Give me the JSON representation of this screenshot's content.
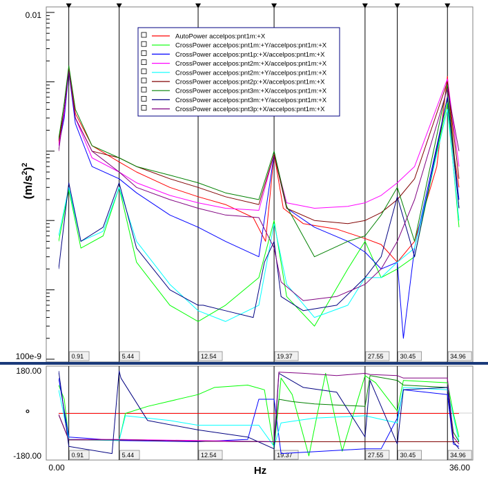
{
  "chart_data": [
    {
      "type": "line",
      "panel": "magnitude",
      "ylabel_base": "(m/s",
      "ylabel_sup": "2",
      "ylabel_close": ")",
      "ylabel_sup2": "2",
      "yscale": "log",
      "ylim": [
        1e-07,
        0.01
      ],
      "y_tick_labels": [
        "0.01",
        "100e-9"
      ],
      "xlim": [
        0,
        36
      ],
      "cursors": [
        0.91,
        5.44,
        12.54,
        19.37,
        27.55,
        30.45,
        34.96
      ],
      "cursor_labels": [
        "0.91",
        "5.44",
        "12.54",
        "19.37",
        "27.55",
        "30.45",
        "34.96"
      ],
      "series": [
        {
          "name": "AutoPower accelpos:pnt1m:+X",
          "color": "#ff0000",
          "x": [
            0,
            0.5,
            0.91,
            1.5,
            3,
            5.44,
            7,
            10,
            12.54,
            15,
            17.5,
            18.6,
            19.37,
            20.2,
            22,
            25,
            27.55,
            29,
            30.45,
            32,
            34,
            34.96,
            35.6,
            36
          ],
          "y": [
            0.00013,
            0.0004,
            0.0016,
            0.00035,
            0.00012,
            7e-05,
            5e-05,
            3e-05,
            2.2e-05,
            1.7e-05,
            1.1e-05,
            5e-06,
            9e-05,
            1.5e-05,
            9e-06,
            7.5e-06,
            5.5e-06,
            4.5e-06,
            2.5e-06,
            5e-06,
            6e-05,
            0.0012,
            8e-05,
            3e-05
          ]
        },
        {
          "name": "CrossPower accelpos:pnt1m:+Y/accelpos:pnt1m:+X",
          "color": "#00ff00",
          "x": [
            0,
            0.91,
            2,
            4,
            5.44,
            7,
            10,
            12.54,
            15,
            18,
            19.37,
            20.5,
            23,
            26,
            27.55,
            29,
            30.45,
            32,
            34.96,
            36
          ],
          "y": [
            5e-06,
            2.8e-05,
            4e-06,
            6e-06,
            3e-05,
            2.5e-06,
            6e-07,
            3.5e-07,
            6e-07,
            1.5e-06,
            1e-05,
            8e-07,
            3e-07,
            2e-06,
            5e-06,
            1.5e-06,
            2e-06,
            3e-06,
            0.0005,
            8e-06
          ]
        },
        {
          "name": "CrossPower accelpos:pnt1p:+X/accelpos:pnt1m:+X",
          "color": "#0000ff",
          "x": [
            0,
            0.5,
            0.91,
            1.5,
            3,
            5.44,
            7,
            10,
            12.54,
            15,
            18,
            19.37,
            20.5,
            23,
            26,
            27.55,
            29,
            30.45,
            31,
            32,
            34.96,
            36
          ],
          "y": [
            0.00012,
            0.0003,
            0.0014,
            0.00025,
            6e-05,
            4e-05,
            2.5e-05,
            1.2e-05,
            8e-06,
            5e-06,
            3e-06,
            9e-05,
            1.5e-05,
            8e-06,
            5e-06,
            3.5e-06,
            2e-06,
            2.5e-06,
            2e-07,
            4e-06,
            0.0006,
            2e-05
          ]
        },
        {
          "name": "CrossPower accelpos:pnt2m:+X/accelpos:pnt1m:+X",
          "color": "#ff00ff",
          "x": [
            0,
            0.5,
            0.91,
            1.5,
            3,
            5.44,
            7,
            10,
            12.54,
            15,
            18,
            19.37,
            20.5,
            23,
            26,
            27.55,
            29,
            30.45,
            32,
            34.96,
            36
          ],
          "y": [
            0.00012,
            0.00035,
            0.0015,
            0.0003,
            8e-05,
            5e-05,
            3.5e-05,
            2.3e-05,
            1.8e-05,
            1.5e-05,
            1.4e-05,
            9e-05,
            1.8e-05,
            1.5e-05,
            1.6e-05,
            1.8e-05,
            2.3e-05,
            3.5e-05,
            6e-05,
            0.0011,
            6e-05
          ]
        },
        {
          "name": "CrossPower accelpos:pnt2m:+Y/accelpos:pnt1m:+X",
          "color": "#00ffff",
          "x": [
            0,
            0.91,
            2,
            4,
            5.44,
            7,
            10,
            12.54,
            15,
            18,
            19.37,
            20.5,
            23,
            26,
            27.55,
            29,
            30.45,
            32,
            34.96,
            36
          ],
          "y": [
            6e-06,
            3e-05,
            5e-06,
            7e-06,
            3e-05,
            5e-06,
            1.2e-06,
            5e-07,
            3.5e-07,
            6e-07,
            9e-06,
            1.2e-06,
            4e-07,
            6e-07,
            1.5e-06,
            1.5e-06,
            2.5e-06,
            4e-06,
            0.0004,
            1e-05
          ]
        },
        {
          "name": "CrossPower accelpos:pnt2p:+X/accelpos:pnt1m:+X",
          "color": "#800000",
          "x": [
            0,
            0.5,
            0.91,
            1.5,
            3,
            5.44,
            7,
            10,
            12.54,
            15,
            18,
            19.37,
            20.5,
            23,
            26,
            27.55,
            29,
            30.45,
            32,
            34.96,
            36
          ],
          "y": [
            0.00014,
            0.0004,
            0.0015,
            0.0003,
            0.0001,
            8e-05,
            6e-05,
            4e-05,
            3e-05,
            2.2e-05,
            1.7e-05,
            9e-05,
            1.5e-05,
            1e-05,
            9e-06,
            1e-05,
            1.3e-05,
            2e-05,
            4e-05,
            0.001,
            4e-05
          ]
        },
        {
          "name": "CrossPower accelpos:pnt3m:+X/accelpos:pnt1m:+X",
          "color": "#008000",
          "x": [
            0,
            0.5,
            0.91,
            1.5,
            3,
            5.44,
            7,
            10,
            12.54,
            15,
            18,
            19.37,
            20.5,
            23,
            26,
            27.55,
            29,
            30.45,
            32,
            34.96,
            36
          ],
          "y": [
            0.00015,
            0.0005,
            0.0017,
            0.0004,
            0.00012,
            8e-05,
            6e-05,
            4.5e-05,
            3.5e-05,
            2.5e-05,
            2e-05,
            0.0001,
            1.6e-05,
            3e-06,
            5e-06,
            6e-06,
            1.2e-05,
            3e-05,
            5e-06,
            0.0009,
            1.5e-05
          ]
        },
        {
          "name": "CrossPower accelpos:pnt3m:+Y/accelpos:pnt1m:+X",
          "color": "#000080",
          "x": [
            0,
            0.91,
            2,
            4,
            5.44,
            7,
            10,
            12.54,
            13,
            15,
            17.5,
            18.5,
            19.37,
            20,
            22,
            25,
            27.55,
            29,
            30.45,
            32,
            34.96,
            36
          ],
          "y": [
            2e-06,
            3.5e-05,
            5e-06,
            8e-06,
            3.5e-05,
            4e-06,
            1e-06,
            6e-07,
            6e-07,
            5e-07,
            4e-07,
            2.5e-06,
            5e-06,
            8e-07,
            5e-07,
            6e-07,
            1.5e-06,
            3e-06,
            2.2e-05,
            3e-06,
            0.0006,
            1.5e-05
          ]
        },
        {
          "name": "CrossPower accelpos:pnt3p:+X/accelpos:pnt1m:+X",
          "color": "#800080",
          "x": [
            0,
            0.5,
            0.91,
            1.5,
            3,
            5.44,
            7,
            10,
            12.54,
            15,
            18,
            19.37,
            20,
            22,
            25,
            27.55,
            29,
            30.45,
            32,
            34.96,
            36
          ],
          "y": [
            0.0001,
            0.0004,
            0.0014,
            0.0003,
            0.0001,
            5e-05,
            3e-05,
            2e-05,
            1.5e-05,
            1.2e-05,
            1.1e-05,
            4e-06,
            1.3e-06,
            7e-07,
            8e-07,
            1.2e-06,
            2e-06,
            5e-06,
            2e-05,
            0.0008,
            0.0001
          ]
        }
      ]
    },
    {
      "type": "line",
      "panel": "phase",
      "ylabel": "°",
      "ylim": [
        -180,
        180
      ],
      "y_tick_labels": [
        "180.00",
        "-180.00"
      ],
      "xlim": [
        0,
        36
      ],
      "xlabel": "Hz",
      "x_tick_labels": [
        "0.00",
        "36.00"
      ],
      "cursors": [
        0.91,
        5.44,
        12.54,
        19.37,
        27.55,
        30.45,
        34.96
      ],
      "cursor_labels": [
        "0.91",
        "5.44",
        "12.54",
        "19.37",
        "27.55",
        "30.45",
        "34.96"
      ],
      "series": [
        {
          "name": "AutoPower accelpos:pnt1m:+X",
          "color": "#ff0000",
          "x": [
            0,
            36
          ],
          "y": [
            0,
            0
          ]
        },
        {
          "name": "CrossPower accelpos:pnt1m:+Y/accelpos:pnt1m:+X",
          "color": "#00ff00",
          "x": [
            0,
            0.5,
            0.91,
            2,
            5.44,
            6,
            8,
            12.54,
            14,
            17,
            18.5,
            19.37,
            20,
            21,
            22.5,
            24,
            25.5,
            27.55,
            28.5,
            30.45,
            31,
            34.96,
            35.5,
            36
          ],
          "y": [
            120,
            60,
            -110,
            -110,
            -115,
            0,
            30,
            80,
            110,
            120,
            100,
            -150,
            150,
            80,
            -180,
            170,
            -160,
            160,
            130,
            10,
            140,
            130,
            0,
            -100
          ]
        },
        {
          "name": "CrossPower accelpos:pnt1p:+X/accelpos:pnt1m:+X",
          "color": "#0000ff",
          "x": [
            0,
            0.91,
            5.44,
            12.54,
            17,
            18,
            19.37,
            20,
            27.55,
            29,
            30.45,
            31,
            34.96,
            35.5,
            36
          ],
          "y": [
            150,
            -100,
            -115,
            -120,
            -110,
            60,
            60,
            -170,
            -150,
            -150,
            -20,
            100,
            80,
            -130,
            -140
          ]
        },
        {
          "name": "CrossPower accelpos:pnt2m:+X/accelpos:pnt1m:+X",
          "color": "#ff00ff",
          "x": [
            0,
            0.91,
            5.44,
            12.54,
            19.37,
            27.55,
            30.45,
            34.96,
            36
          ],
          "y": [
            -5,
            -110,
            -110,
            -115,
            -120,
            -120,
            -120,
            -120,
            -120
          ]
        },
        {
          "name": "CrossPower accelpos:pnt2m:+Y/accelpos:pnt1m:+X",
          "color": "#00ffff",
          "x": [
            0,
            0.91,
            2,
            5.44,
            6,
            10,
            12.54,
            18,
            19.37,
            20,
            23,
            27.55,
            30.45,
            31,
            34.96,
            36
          ],
          "y": [
            100,
            -110,
            -112,
            -115,
            -10,
            -30,
            -50,
            -50,
            -140,
            -40,
            -20,
            -10,
            -40,
            110,
            100,
            -120
          ]
        },
        {
          "name": "CrossPower accelpos:pnt2p:+X/accelpos:pnt1m:+X",
          "color": "#800000",
          "x": [
            0,
            0.91,
            5.44,
            12.54,
            19.37,
            27.55,
            30.45,
            34.96,
            36
          ],
          "y": [
            -5,
            -112,
            -112,
            -118,
            -120,
            -120,
            -120,
            -120,
            -120
          ]
        },
        {
          "name": "CrossPower accelpos:pnt3m:+X/accelpos:pnt1m:+X",
          "color": "#008000",
          "x": [
            0,
            0.91,
            5.44,
            12.54,
            19.37,
            19.8,
            21,
            23,
            27.55,
            28,
            30.45,
            31,
            34.96,
            35.5,
            36
          ],
          "y": [
            -5,
            -112,
            -112,
            -118,
            -120,
            60,
            50,
            40,
            30,
            160,
            140,
            120,
            110,
            -80,
            -120
          ]
        },
        {
          "name": "CrossPower accelpos:pnt3m:+Y/accelpos:pnt1m:+X",
          "color": "#000080",
          "x": [
            0,
            0.91,
            4.8,
            5.44,
            5.6,
            8,
            12.54,
            17,
            19.37,
            19.8,
            22,
            25,
            27.55,
            28,
            30.45,
            31,
            34.96,
            35.5,
            36
          ],
          "y": [
            180,
            -140,
            -170,
            180,
            150,
            -30,
            -70,
            -100,
            -150,
            170,
            110,
            90,
            -100,
            140,
            -130,
            100,
            110,
            -120,
            -150
          ]
        },
        {
          "name": "CrossPower accelpos:pnt3p:+X/accelpos:pnt1m:+X",
          "color": "#800080",
          "x": [
            0,
            0.91,
            5.44,
            12.54,
            19.37,
            19.8,
            22,
            25,
            27.55,
            28,
            30.45,
            31,
            34.96,
            35.5,
            36
          ],
          "y": [
            -5,
            -112,
            -112,
            -118,
            -120,
            175,
            170,
            160,
            170,
            165,
            160,
            150,
            150,
            -100,
            -130
          ]
        }
      ]
    }
  ]
}
